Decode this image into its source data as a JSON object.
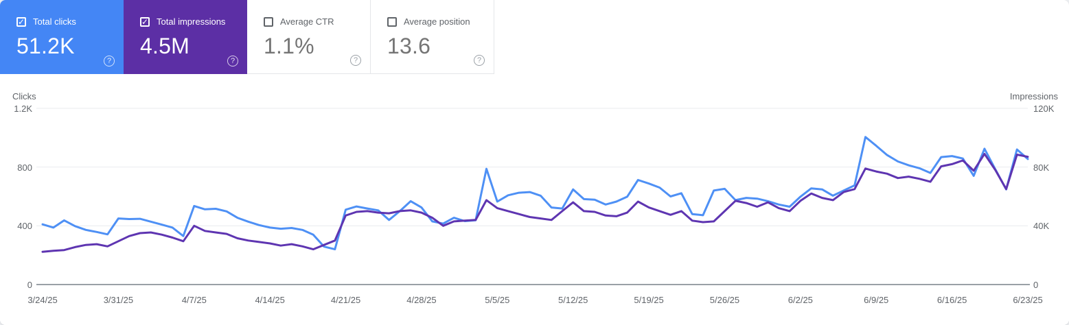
{
  "accent_colors": {
    "clicks": "#4486f5",
    "impressions": "#5c2fa5",
    "clicks_line": "#4e90f5",
    "impressions_line": "#5e35b1"
  },
  "cards": [
    {
      "label": "Total clicks",
      "value": "51.2K",
      "checked": true,
      "help_icon": "?"
    },
    {
      "label": "Total impressions",
      "value": "4.5M",
      "checked": true,
      "help_icon": "?"
    },
    {
      "label": "Average CTR",
      "value": "1.1%",
      "checked": false,
      "help_icon": "?"
    },
    {
      "label": "Average position",
      "value": "13.6",
      "checked": false,
      "help_icon": "?"
    }
  ],
  "chart_data": {
    "type": "line",
    "x_start": "3/24/25",
    "x_end": "6/23/25",
    "frequency": "daily",
    "x_tick_labels": [
      "3/24/25",
      "3/31/25",
      "4/7/25",
      "4/14/25",
      "4/21/25",
      "4/28/25",
      "5/5/25",
      "5/12/25",
      "5/19/25",
      "5/26/25",
      "6/2/25",
      "6/9/25",
      "6/16/25",
      "6/23/25"
    ],
    "left_axis": {
      "label": "Clicks",
      "min": 0,
      "max": 1200,
      "ticks": [
        "0",
        "400",
        "800",
        "1.2K"
      ]
    },
    "right_axis": {
      "label": "Impressions",
      "min": 0,
      "max": 120000,
      "ticks": [
        "0",
        "40K",
        "80K",
        "120K"
      ]
    },
    "grid": "horizontal",
    "series": [
      {
        "name": "Total clicks",
        "axis": "left",
        "color": "#4e90f5",
        "values": [
          410,
          388,
          437,
          398,
          372,
          358,
          342,
          450,
          446,
          448,
          428,
          408,
          388,
          330,
          535,
          512,
          516,
          498,
          455,
          428,
          405,
          388,
          380,
          385,
          372,
          340,
          258,
          240,
          510,
          532,
          518,
          505,
          440,
          500,
          568,
          525,
          430,
          415,
          455,
          432,
          438,
          788,
          565,
          608,
          625,
          630,
          605,
          525,
          518,
          648,
          582,
          578,
          545,
          565,
          598,
          712,
          688,
          660,
          600,
          622,
          480,
          472,
          640,
          652,
          575,
          590,
          585,
          568,
          545,
          530,
          598,
          655,
          648,
          605,
          640,
          675,
          1005,
          945,
          882,
          838,
          812,
          792,
          760,
          868,
          875,
          858,
          740,
          925,
          785,
          648,
          920,
          855
        ]
      },
      {
        "name": "Total impressions",
        "axis": "right",
        "color": "#5e35b1",
        "values": [
          22300,
          23000,
          23500,
          25500,
          27000,
          27500,
          26000,
          29500,
          33000,
          35000,
          35500,
          34000,
          32000,
          29500,
          40000,
          36500,
          35500,
          34500,
          31500,
          30000,
          29000,
          28000,
          26500,
          27500,
          26000,
          24000,
          27000,
          30000,
          47000,
          49500,
          50000,
          49000,
          48500,
          50000,
          50500,
          49000,
          45500,
          40000,
          43000,
          43500,
          44000,
          57500,
          52000,
          50000,
          48000,
          46000,
          45000,
          44000,
          50000,
          56000,
          50000,
          49500,
          47000,
          46500,
          49000,
          56500,
          52500,
          50000,
          47500,
          50000,
          43500,
          42500,
          43000,
          50000,
          57000,
          55500,
          53000,
          56000,
          52000,
          50000,
          57000,
          62000,
          59000,
          57500,
          63000,
          65000,
          79000,
          77000,
          75500,
          72500,
          73500,
          72000,
          70000,
          80500,
          82000,
          84500,
          77500,
          89000,
          78000,
          65000,
          88500,
          87000
        ]
      }
    ]
  }
}
